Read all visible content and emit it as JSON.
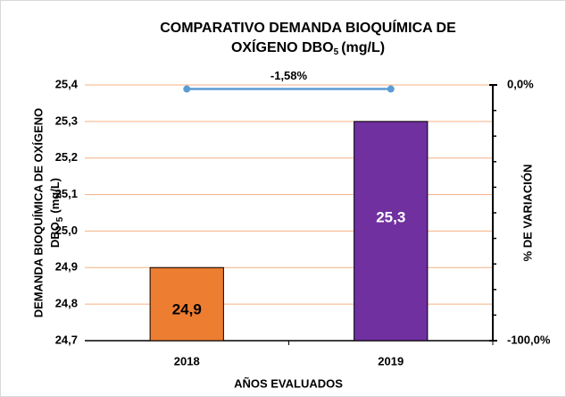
{
  "chart_data": {
    "type": "bar",
    "title_lines": [
      "COMPARATIVO DEMANDA BIOQUÍMICA DE",
      "OXÍGENO DBO"
    ],
    "title_subscript": "5",
    "title_tail": "(mg/L)",
    "ylabel_lines": [
      "DEMANDA  BIOQUÍMICA  DE OXÍGENO",
      "DBO"
    ],
    "ylabel_subscript": "5",
    "ylabel_tail": "(mg/L)",
    "xlabel": "AÑOS EVALUADOS",
    "y2label": "% DE VARIACIÓN",
    "categories": [
      "2018",
      "2019"
    ],
    "series": [
      {
        "type": "bar",
        "colors": [
          "#ed7d31",
          "#7030a0"
        ],
        "values": [
          24.9,
          25.3
        ],
        "value_labels": [
          "24,9",
          "25,3"
        ],
        "label_colors": [
          "#000000",
          "#ffffff"
        ]
      },
      {
        "type": "line",
        "axis": "y2",
        "color": "#5b9bd5",
        "values": [
          -1.58,
          -1.58
        ]
      }
    ],
    "annotation": "-1,58%",
    "ylim": [
      24.7,
      25.4
    ],
    "yticks": [
      {
        "value": 24.7,
        "label": "24,7"
      },
      {
        "value": 24.8,
        "label": "24,8"
      },
      {
        "value": 24.9,
        "label": "24,9"
      },
      {
        "value": 25.0,
        "label": "25,0"
      },
      {
        "value": 25.1,
        "label": "25,1"
      },
      {
        "value": 25.2,
        "label": "25,2"
      },
      {
        "value": 25.3,
        "label": "25,3"
      },
      {
        "value": 25.4,
        "label": "25,4"
      }
    ],
    "y2lim": [
      -100,
      0
    ],
    "y2ticks": [
      {
        "value": -100,
        "label": "-100,0%"
      },
      {
        "value": 0,
        "label": "0,0%"
      }
    ],
    "grid": true,
    "grid_color": "#f4b183"
  }
}
